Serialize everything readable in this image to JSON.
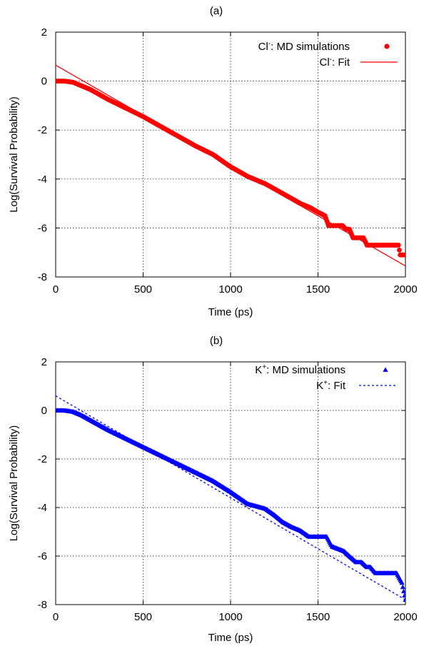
{
  "chart_data": [
    {
      "type": "scatter",
      "title": "(a)",
      "xlabel": "Time (ps)",
      "ylabel": "Log(Survival Probability)",
      "xlim": [
        0,
        2000
      ],
      "ylim": [
        -8,
        2
      ],
      "xticks": [
        "0",
        "500",
        "1000",
        "1500",
        "2000"
      ],
      "yticks": [
        "2",
        "0",
        "-2",
        "-4",
        "-6",
        "-8"
      ],
      "grid": true,
      "legend_position": "top-right",
      "series": [
        {
          "name_base": "Cl",
          "name_sup": "-",
          "name_rest": ": MD simulations",
          "kind": "points",
          "marker": "circle",
          "color": "#ff0000",
          "x": [
            0,
            50,
            100,
            150,
            200,
            250,
            300,
            400,
            500,
            600,
            700,
            800,
            900,
            1000,
            1100,
            1200,
            1300,
            1400,
            1450,
            1500,
            1540,
            1560,
            1640,
            1660,
            1680,
            1700,
            1760,
            1780,
            1960,
            1970,
            2000
          ],
          "y": [
            0,
            0,
            -0.05,
            -0.2,
            -0.35,
            -0.55,
            -0.75,
            -1.1,
            -1.45,
            -1.85,
            -2.25,
            -2.65,
            -3.0,
            -3.5,
            -3.9,
            -4.2,
            -4.6,
            -5.0,
            -5.15,
            -5.35,
            -5.5,
            -5.9,
            -5.9,
            -6.05,
            -6.05,
            -6.4,
            -6.4,
            -6.7,
            -6.7,
            -7.1,
            -7.1
          ]
        },
        {
          "name_base": "Cl",
          "name_sup": "-",
          "name_rest": ": Fit",
          "kind": "line",
          "dash": "solid",
          "color": "#ff0000",
          "x": [
            0,
            2000
          ],
          "y": [
            0.65,
            -7.55
          ]
        }
      ]
    },
    {
      "type": "scatter",
      "title": "(b)",
      "xlabel": "Time (ps)",
      "ylabel": "Log(Survival Probability)",
      "xlim": [
        0,
        2000
      ],
      "ylim": [
        -8,
        2
      ],
      "xticks": [
        "0",
        "500",
        "1000",
        "1500",
        "2000"
      ],
      "yticks": [
        "2",
        "0",
        "-2",
        "-4",
        "-6",
        "-8"
      ],
      "grid": true,
      "legend_position": "top-right",
      "series": [
        {
          "name_base": "K",
          "name_sup": "+",
          "name_rest": ": MD simulations",
          "kind": "points",
          "marker": "triangle",
          "color": "#0000ff",
          "x": [
            0,
            50,
            100,
            150,
            200,
            250,
            300,
            400,
            500,
            600,
            700,
            800,
            900,
            1000,
            1050,
            1100,
            1150,
            1200,
            1250,
            1300,
            1350,
            1400,
            1450,
            1550,
            1580,
            1650,
            1680,
            1720,
            1750,
            1780,
            1800,
            1830,
            1850,
            1950,
            1980,
            2000
          ],
          "y": [
            0,
            0,
            -0.05,
            -0.2,
            -0.4,
            -0.6,
            -0.8,
            -1.15,
            -1.5,
            -1.85,
            -2.2,
            -2.55,
            -2.9,
            -3.35,
            -3.6,
            -3.85,
            -3.95,
            -4.05,
            -4.3,
            -4.6,
            -4.8,
            -4.95,
            -5.2,
            -5.2,
            -5.6,
            -5.8,
            -6.0,
            -6.25,
            -6.25,
            -6.45,
            -6.45,
            -6.7,
            -6.7,
            -6.7,
            -7.1,
            -7.8
          ]
        },
        {
          "name_base": "K",
          "name_sup": "+",
          "name_rest": ": Fit",
          "kind": "line",
          "dash": "dotted",
          "color": "#0000ff",
          "x": [
            0,
            2000
          ],
          "y": [
            0.6,
            -7.8
          ]
        }
      ]
    }
  ]
}
